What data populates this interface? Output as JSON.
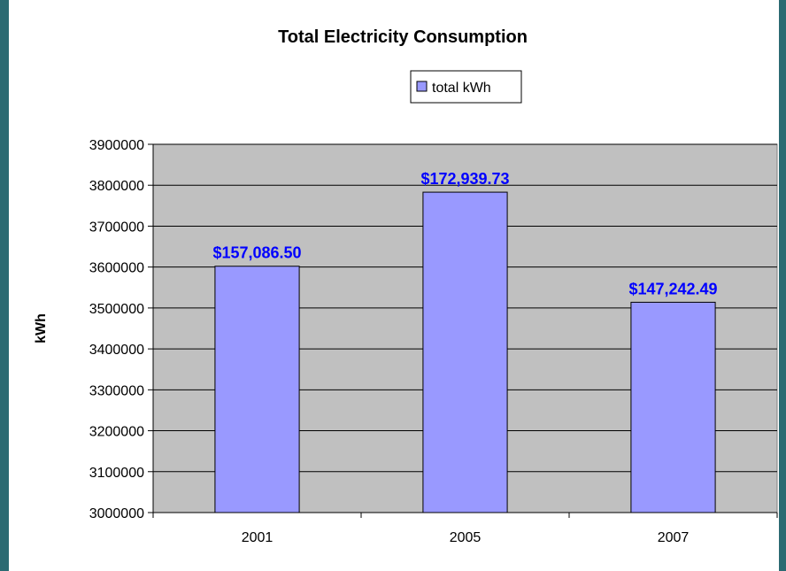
{
  "colors": {
    "background": "#2b6a72",
    "plot_area": "#c0c0c0",
    "bar_fill": "#9999ff",
    "bar_stroke": "#000000",
    "data_label": "#0000ff",
    "gridline": "#000000"
  },
  "chart_data": {
    "type": "bar",
    "title": "Total Electricity Consumption",
    "xlabel": "",
    "ylabel": "kWh",
    "categories": [
      "2001",
      "2005",
      "2007"
    ],
    "series": [
      {
        "name": "total kWh",
        "values": [
          3602000,
          3783000,
          3514000
        ],
        "data_labels": [
          "$157,086.50",
          "$172,939.73",
          "$147,242.49"
        ]
      }
    ],
    "ylim": [
      3000000,
      3900000
    ],
    "yticks": [
      "3000000",
      "3100000",
      "3200000",
      "3300000",
      "3400000",
      "3500000",
      "3600000",
      "3700000",
      "3800000",
      "3900000"
    ],
    "grid": true,
    "legend_position": "top-center"
  }
}
